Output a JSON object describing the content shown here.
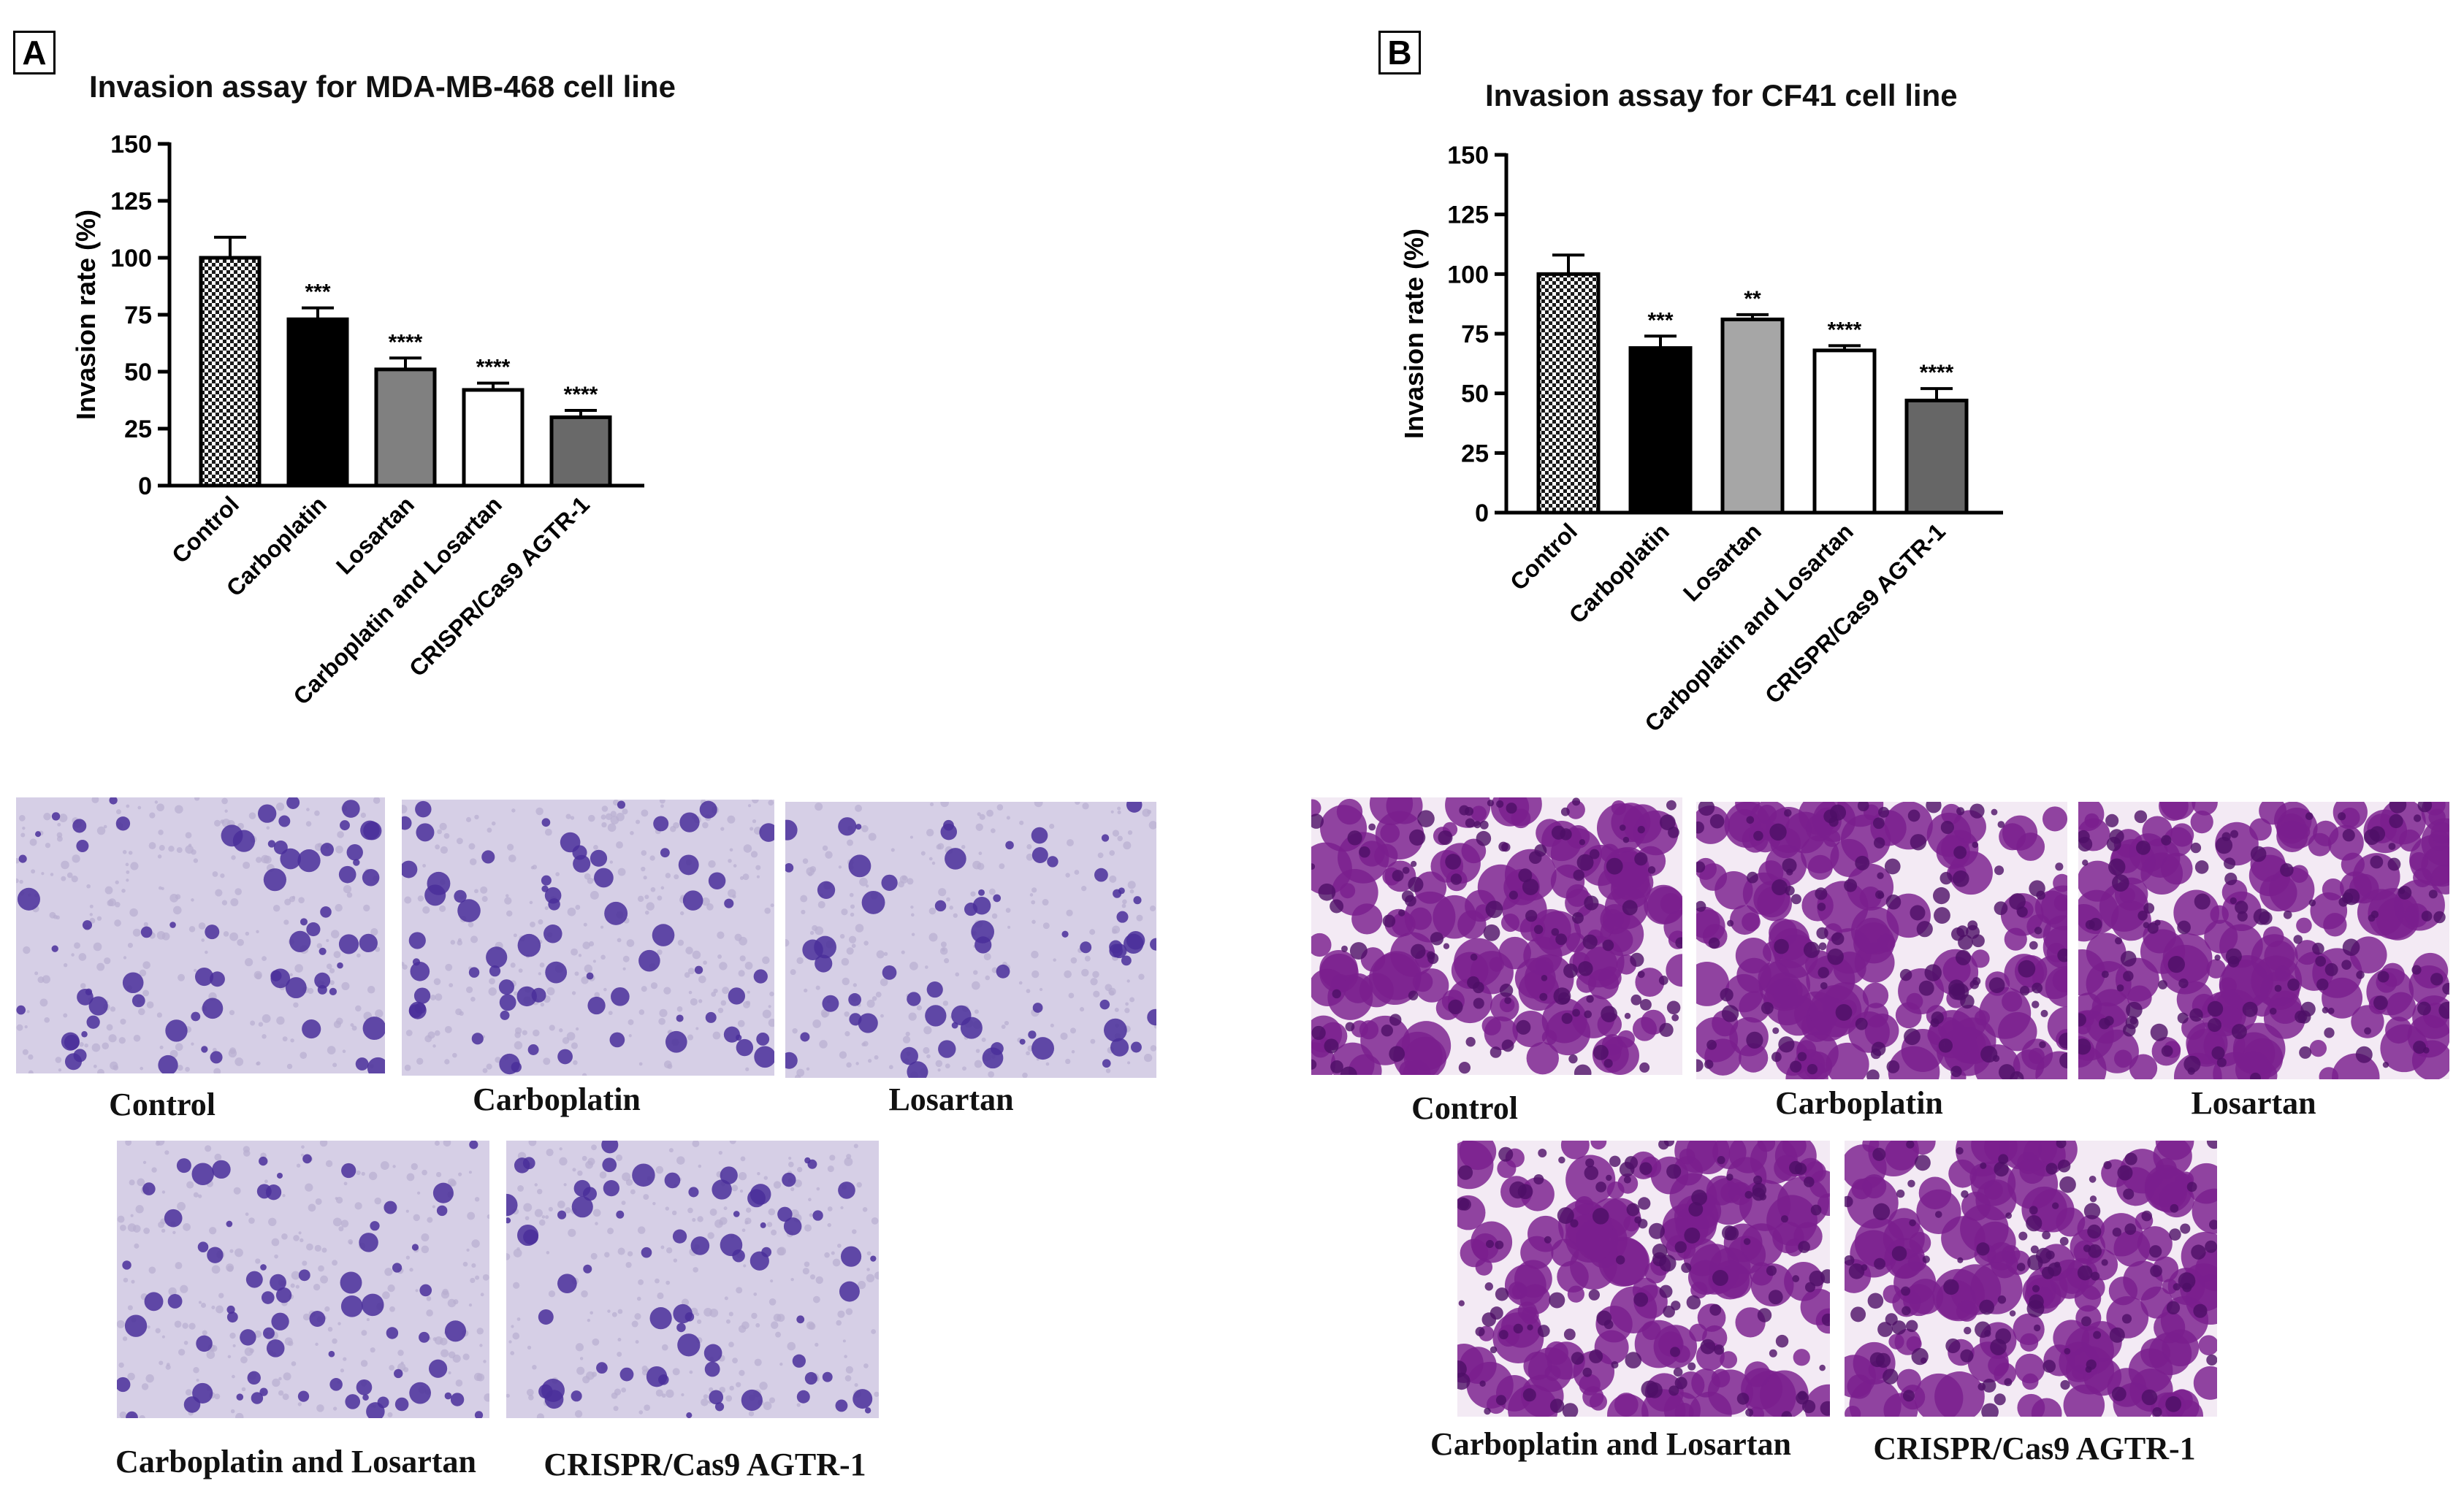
{
  "panels": [
    {
      "letter": "A",
      "chart_data": {
        "type": "bar",
        "title": "Invasion assay for MDA-MB-468 cell line",
        "xlabel": "",
        "ylabel": "Invasion rate (%)",
        "ylim": [
          0,
          150
        ],
        "yticks": [
          0,
          25,
          50,
          75,
          100,
          125,
          150
        ],
        "categories": [
          "Control",
          "Carboplatin",
          "Losartan",
          "Carboplatin and Losartan",
          "CRISPR/Cas9 AGTR-1"
        ],
        "values": [
          100,
          73,
          51,
          42,
          30
        ],
        "errors": [
          9,
          5,
          5,
          3,
          3
        ],
        "significance": [
          "",
          "***",
          "****",
          "****",
          "****"
        ],
        "fills": [
          "checker",
          "#000000",
          "#808080",
          "#ffffff",
          "#696969"
        ],
        "grid": false,
        "legend": "none"
      },
      "image_labels": [
        "Control",
        "Carboplatin",
        "Losartan",
        "Carboplatin and Losartan",
        "CRISPR/Cas9 AGTR-1"
      ]
    },
    {
      "letter": "B",
      "chart_data": {
        "type": "bar",
        "title": "Invasion assay for CF41 cell line",
        "xlabel": "",
        "ylabel": "Invasion rate (%)",
        "ylim": [
          0,
          150
        ],
        "yticks": [
          0,
          25,
          50,
          75,
          100,
          125,
          150
        ],
        "categories": [
          "Control",
          "Carboplatin",
          "Losartan",
          "Carboplatin and Losartan",
          "CRISPR/Cas9 AGTR-1"
        ],
        "values": [
          100,
          69,
          81,
          68,
          47
        ],
        "errors": [
          8,
          5,
          2,
          2,
          5
        ],
        "significance": [
          "",
          "***",
          "**",
          "****",
          "****"
        ],
        "fills": [
          "checker",
          "#000000",
          "#a6a6a6",
          "#ffffff",
          "#666666"
        ],
        "grid": false,
        "legend": "none"
      },
      "image_labels": [
        "Control",
        "Carboplatin",
        "Losartan",
        "Carboplatin and Losartan",
        "CRISPR/Cas9 AGTR-1"
      ]
    }
  ]
}
